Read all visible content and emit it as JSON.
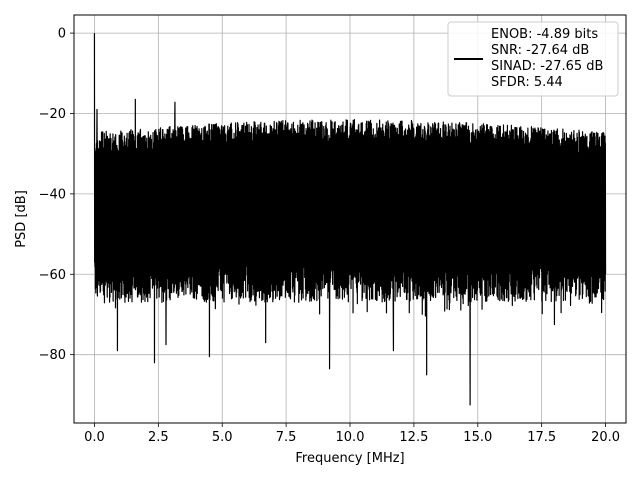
{
  "chart_data": {
    "type": "line",
    "xlabel": "Frequency [MHz]",
    "ylabel": "PSD [dB]",
    "xlim": [
      -0.8,
      20.8
    ],
    "ylim": [
      -97,
      4.5
    ],
    "xticks": [
      0.0,
      2.5,
      5.0,
      7.5,
      10.0,
      12.5,
      15.0,
      17.5,
      20.0
    ],
    "xtick_labels": [
      "0.0",
      "2.5",
      "5.0",
      "7.5",
      "10.0",
      "12.5",
      "15.0",
      "17.5",
      "20.0"
    ],
    "yticks": [
      0,
      -20,
      -40,
      -60,
      -80
    ],
    "ytick_labels": [
      "0",
      "−20",
      "−40",
      "−60",
      "−80"
    ],
    "grid": true,
    "legend_position": "top-right",
    "legend_lines": [
      "ENOB: -4.89 bits",
      "SNR: -27.64 dB",
      "SINAD: -27.65 dB",
      "SFDR: 5.44"
    ],
    "series": [
      {
        "color": "#000000",
        "x_range": [
          0.0,
          20.0
        ],
        "noise_upper_dB": [
          -25,
          -21.5
        ],
        "noise_lower_typical_dB": -67,
        "points": [
          {
            "x": 0.0,
            "y": 0.0
          },
          {
            "x": 0.05,
            "y": -44
          },
          {
            "x": 0.1,
            "y": -19
          },
          {
            "x": 1.6,
            "y": -16.5
          },
          {
            "x": 3.15,
            "y": -17.2
          },
          {
            "x": 0.9,
            "y": -79
          },
          {
            "x": 2.35,
            "y": -82
          },
          {
            "x": 2.8,
            "y": -77.5
          },
          {
            "x": 4.5,
            "y": -80.5
          },
          {
            "x": 9.2,
            "y": -83.5
          },
          {
            "x": 11.7,
            "y": -79
          },
          {
            "x": 13.0,
            "y": -85
          },
          {
            "x": 14.7,
            "y": -92.5
          },
          {
            "x": 6.7,
            "y": -77
          },
          {
            "x": 18.0,
            "y": -72.5
          }
        ]
      }
    ]
  }
}
